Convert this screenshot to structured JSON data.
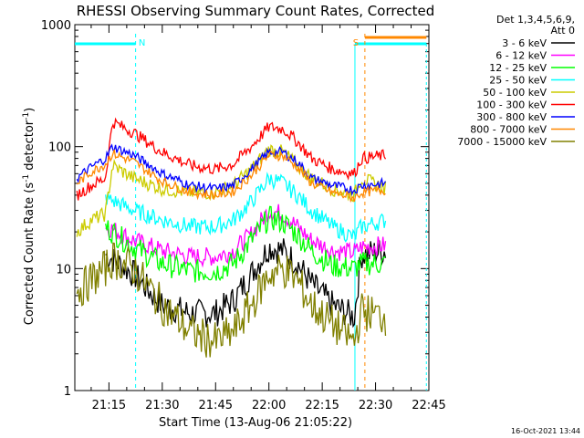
{
  "chart_data": {
    "type": "line",
    "title": "RHESSI Observing Summary Count Rates, Corrected",
    "xlabel": "Start Time (13-Aug-06 21:05:22)",
    "ylabel": "Corrected Count Rate (s⁻¹ detector⁻¹)",
    "ylabel_main": "Corrected Count Rate (s",
    "ylabel_sup1": "-1",
    "ylabel_mid": " detector",
    "ylabel_sup2": "-1",
    "ylabel_end": ")",
    "y_scale": "log",
    "ylim": [
      1,
      1000
    ],
    "yticks": [
      {
        "value": 1,
        "label": "1"
      },
      {
        "value": 10,
        "label": "10"
      },
      {
        "value": 100,
        "label": "100"
      },
      {
        "value": 1000,
        "label": "1000"
      }
    ],
    "xlim_minutes": [
      5.4,
      105.0
    ],
    "xticks": [
      {
        "minutes": 15,
        "label": "21:15"
      },
      {
        "minutes": 30,
        "label": "21:30"
      },
      {
        "minutes": 45,
        "label": "21:45"
      },
      {
        "minutes": 60,
        "label": "22:00"
      },
      {
        "minutes": 75,
        "label": "22:15"
      },
      {
        "minutes": 90,
        "label": "22:30"
      },
      {
        "minutes": 105,
        "label": "22:45"
      }
    ],
    "legend_position": "right",
    "legend_header": [
      "Det 1,3,4,5,6,9,",
      "Att 0"
    ],
    "footer": "16-Oct-2021 13:44",
    "series": [
      {
        "name": "3 - 6 keV",
        "color": "#000000",
        "base": 11.5,
        "noise": 0.12,
        "x": [
          6,
          14,
          16,
          22,
          30,
          38,
          45,
          50,
          55,
          60,
          64,
          68,
          72,
          78,
          84,
          86,
          93
        ],
        "y": [
          null,
          13,
          12,
          9,
          5,
          4.3,
          4.3,
          5.5,
          9,
          15,
          14,
          11,
          7.5,
          5,
          4,
          13,
          14
        ]
      },
      {
        "name": "6 - 12 keV",
        "color": "#ff00ff",
        "noise": 0.08,
        "x": [
          6,
          14,
          16,
          22,
          30,
          38,
          45,
          50,
          55,
          60,
          64,
          68,
          72,
          78,
          84,
          86,
          93
        ],
        "y": [
          null,
          22,
          21,
          17,
          14,
          12.5,
          12.5,
          14,
          19,
          30,
          28,
          22,
          17,
          14,
          13.5,
          15,
          15.5
        ]
      },
      {
        "name": "12 - 25 keV",
        "color": "#00ff00",
        "noise": 0.1,
        "x": [
          6,
          14,
          16,
          22,
          30,
          38,
          45,
          50,
          55,
          60,
          64,
          68,
          72,
          78,
          84,
          86,
          93
        ],
        "y": [
          null,
          22,
          20,
          15,
          11,
          9.5,
          9.5,
          11,
          17,
          26,
          24,
          19,
          14,
          10.5,
          10,
          11,
          11
        ]
      },
      {
        "name": "25 - 50 keV",
        "color": "#00ffff",
        "noise": 0.07,
        "x": [
          6,
          14,
          16,
          22,
          30,
          38,
          45,
          50,
          55,
          60,
          64,
          68,
          72,
          78,
          84,
          86,
          93
        ],
        "y": [
          null,
          38,
          36,
          30,
          25,
          22,
          22,
          25,
          35,
          55,
          50,
          40,
          30,
          22,
          18,
          22,
          25
        ]
      },
      {
        "name": "50 - 100 keV",
        "color": "#cccc00",
        "noise": 0.06,
        "x": [
          6,
          10,
          14,
          16,
          22,
          30,
          38,
          45,
          50,
          55,
          60,
          64,
          68,
          72,
          78,
          84,
          86,
          93
        ],
        "y": [
          20,
          25,
          28,
          70,
          55,
          45,
          42,
          42,
          48,
          65,
          95,
          90,
          70,
          55,
          45,
          40,
          55,
          45
        ]
      },
      {
        "name": "100 - 300 keV",
        "color": "#ff0000",
        "noise": 0.05,
        "x": [
          6,
          10,
          14,
          16,
          22,
          30,
          38,
          45,
          50,
          55,
          60,
          64,
          68,
          72,
          78,
          84,
          86,
          93
        ],
        "y": [
          40,
          48,
          55,
          160,
          130,
          90,
          70,
          65,
          72,
          100,
          145,
          140,
          110,
          80,
          65,
          60,
          80,
          85
        ]
      },
      {
        "name": "300 - 800 keV",
        "color": "#0000ff",
        "noise": 0.04,
        "x": [
          6,
          10,
          14,
          16,
          22,
          30,
          38,
          45,
          50,
          55,
          60,
          64,
          68,
          72,
          78,
          84,
          86,
          93
        ],
        "y": [
          55,
          68,
          80,
          100,
          85,
          60,
          48,
          45,
          48,
          65,
          90,
          90,
          75,
          55,
          48,
          44,
          48,
          50
        ]
      },
      {
        "name": "800 - 7000 keV",
        "color": "#ff8800",
        "noise": 0.04,
        "x": [
          6,
          10,
          14,
          16,
          22,
          30,
          38,
          45,
          50,
          55,
          60,
          64,
          68,
          72,
          78,
          84,
          86,
          93
        ],
        "y": [
          50,
          62,
          72,
          88,
          75,
          52,
          42,
          40,
          43,
          58,
          85,
          84,
          68,
          50,
          42,
          38,
          42,
          44
        ]
      },
      {
        "name": "7000 - 15000 keV",
        "color": "#808000",
        "noise": 0.16,
        "x": [
          6,
          10,
          14,
          16,
          22,
          30,
          38,
          45,
          50,
          55,
          60,
          64,
          68,
          72,
          78,
          84,
          86,
          93
        ],
        "y": [
          6.5,
          8,
          10,
          12,
          10,
          5,
          3,
          2.5,
          3,
          5,
          9,
          10,
          8,
          5,
          3.5,
          2.5,
          4.5,
          4
        ]
      }
    ],
    "markers": [
      {
        "label": "N",
        "color": "#00ffff",
        "x_minutes": 22.5,
        "style": "dashed"
      },
      {
        "label": "S",
        "color": "#ff8800",
        "x_minutes": 87.0,
        "style": "dashed"
      }
    ],
    "night_color": "#00ffff",
    "saa_color": "#ff8800"
  }
}
